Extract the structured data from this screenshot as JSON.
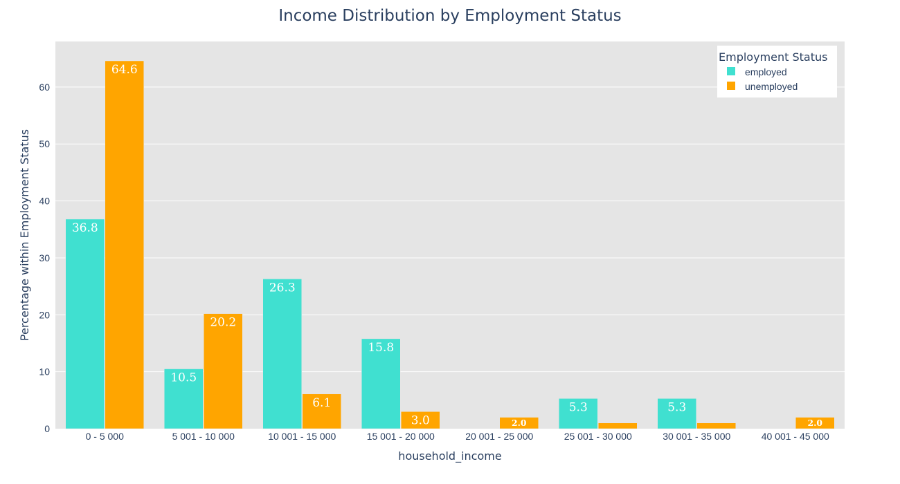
{
  "chart_data": {
    "type": "bar",
    "title": "Income Distribution by Employment Status",
    "xlabel": "household_income",
    "ylabel": "Percentage within Employment Status",
    "ylim": [
      0,
      68
    ],
    "yticks": [
      0,
      10,
      20,
      30,
      40,
      50,
      60
    ],
    "grid": true,
    "legend": {
      "title": "Employment Status",
      "placement": "top-right"
    },
    "categories": [
      "0 - 5 000",
      "5 001 - 10 000",
      "10 001 - 15 000",
      "15 001 - 20 000",
      "20 001 - 25 000",
      "25 001 - 30 000",
      "30 001 - 35 000",
      "40 001 - 45 000"
    ],
    "series": [
      {
        "name": "employed",
        "color": "#40e0d0",
        "values": [
          36.8,
          10.5,
          26.3,
          15.8,
          null,
          5.3,
          5.3,
          null
        ],
        "labels": [
          "36.8",
          "10.5",
          "26.3",
          "15.8",
          "",
          "5.3",
          "5.3",
          ""
        ]
      },
      {
        "name": "unemployed",
        "color": "#ffa500",
        "values": [
          64.6,
          20.2,
          6.1,
          3.0,
          2.0,
          1.0,
          1.0,
          2.0
        ],
        "labels": [
          "64.6",
          "20.2",
          "6.1",
          "3.0",
          "2.0",
          "",
          "",
          "2.0"
        ]
      }
    ]
  }
}
